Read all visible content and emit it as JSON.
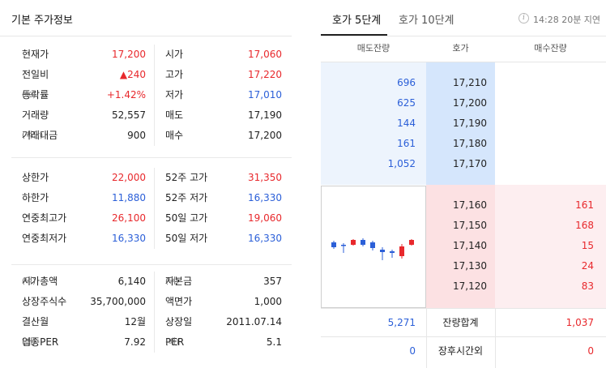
{
  "basic": {
    "title": "기본 주가정보",
    "group1": [
      {
        "label": "현재가",
        "unit": "",
        "value": "17,200",
        "color": "red",
        "label2": "시가",
        "unit2": "",
        "value2": "17,060",
        "color2": "red"
      },
      {
        "label": "전일비",
        "unit": "",
        "value": "▲240",
        "color": "red",
        "label2": "고가",
        "unit2": "",
        "value2": "17,220",
        "color2": "red"
      },
      {
        "label": "등락률",
        "unit": "(%)",
        "value": "+1.42%",
        "color": "red",
        "label2": "저가",
        "unit2": "",
        "value2": "17,010",
        "color2": "blue"
      },
      {
        "label": "거래량",
        "unit": "",
        "value": "52,557",
        "color": "dark",
        "label2": "매도",
        "unit2": "",
        "value2": "17,190",
        "color2": "dark"
      },
      {
        "label": "거래대금",
        "unit": "(백만)",
        "value": "900",
        "color": "dark",
        "label2": "매수",
        "unit2": "",
        "value2": "17,200",
        "color2": "dark"
      }
    ],
    "group2": [
      {
        "label": "상한가",
        "unit": "",
        "value": "22,000",
        "color": "red",
        "label2": "52주 고가",
        "unit2": "",
        "value2": "31,350",
        "color2": "red"
      },
      {
        "label": "하한가",
        "unit": "",
        "value": "11,880",
        "color": "blue",
        "label2": "52주 저가",
        "unit2": "",
        "value2": "16,330",
        "color2": "blue"
      },
      {
        "label": "연중최고가",
        "unit": "",
        "value": "26,100",
        "color": "red",
        "label2": "50일 고가",
        "unit2": "",
        "value2": "19,060",
        "color2": "red"
      },
      {
        "label": "연중최저가",
        "unit": "",
        "value": "16,330",
        "color": "blue",
        "label2": "50일 저가",
        "unit2": "",
        "value2": "16,330",
        "color2": "blue"
      }
    ],
    "group3": [
      {
        "label": "시가총액",
        "unit": "(억)",
        "value": "6,140",
        "color": "dark",
        "label2": "자본금",
        "unit2": "(억)",
        "value2": "357",
        "color2": "dark"
      },
      {
        "label": "상장주식수",
        "unit": "",
        "value": "35,700,000",
        "color": "dark",
        "label2": "액면가",
        "unit2": "",
        "value2": "1,000",
        "color2": "dark"
      },
      {
        "label": "결산월",
        "unit": "",
        "value": "12월",
        "color": "dark",
        "label2": "상장일",
        "unit2": "",
        "value2": "2011.07.14",
        "color2": "dark"
      },
      {
        "label": "업종PER",
        "unit": "(배)",
        "value": "7.92",
        "color": "dark",
        "label2": "PER",
        "unit2": "(배)",
        "value2": "5.1",
        "color2": "dark"
      }
    ]
  },
  "orderbook": {
    "tabs": [
      "호가 5단계",
      "호가 10단계"
    ],
    "time_info": "14:28 20분 지연",
    "info_icon": "info-icon",
    "headers": [
      "매도잔량",
      "호가",
      "매수잔량"
    ],
    "asks": [
      {
        "volume": "696",
        "price": "17,210"
      },
      {
        "volume": "625",
        "price": "17,200"
      },
      {
        "volume": "144",
        "price": "17,190"
      },
      {
        "volume": "161",
        "price": "17,180"
      },
      {
        "volume": "1,052",
        "price": "17,170"
      }
    ],
    "bids": [
      {
        "price": "17,160",
        "volume": "161"
      },
      {
        "price": "17,150",
        "volume": "168"
      },
      {
        "price": "17,140",
        "volume": "15"
      },
      {
        "price": "17,130",
        "volume": "24"
      },
      {
        "price": "17,120",
        "volume": "83"
      }
    ],
    "total": {
      "ask": "5,271",
      "label": "잔량합계",
      "bid": "1,037"
    },
    "after_hours": {
      "ask": "0",
      "label": "장후시간외",
      "bid": "0"
    },
    "colors": {
      "up": "#e8282c",
      "down": "#2b5fd8",
      "ask_bg": "#edf4fd",
      "bid_bg": "#fdeef0"
    }
  }
}
